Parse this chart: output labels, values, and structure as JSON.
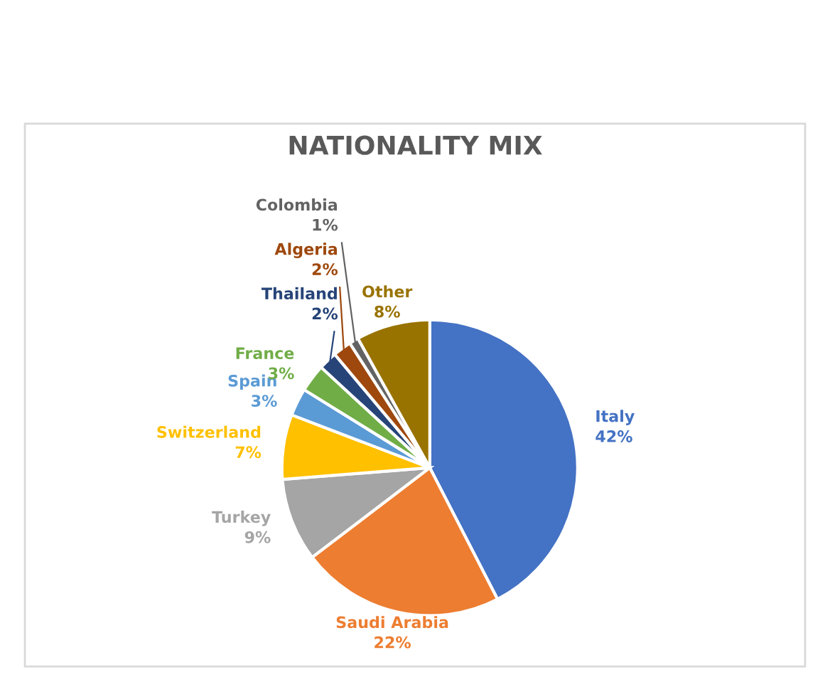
{
  "chart_data": {
    "type": "pie",
    "title": "NATIONALITY MIX",
    "categories": [
      "Italy",
      "Saudi Arabia",
      "Turkey",
      "Switzerland",
      "Spain",
      "France",
      "Thailand",
      "Algeria",
      "Colombia",
      "Other"
    ],
    "values": [
      42,
      22,
      9,
      7,
      3,
      3,
      2,
      2,
      1,
      8
    ],
    "colors": [
      "#4472c4",
      "#ed7d31",
      "#a5a5a5",
      "#ffc000",
      "#5b9bd5",
      "#70ad47",
      "#264478",
      "#9e480e",
      "#636363",
      "#997300"
    ],
    "value_labels": [
      "42%",
      "22%",
      "9%",
      "7%",
      "3%",
      "3%",
      "2%",
      "2%",
      "1%",
      "8%"
    ],
    "legend": false
  }
}
